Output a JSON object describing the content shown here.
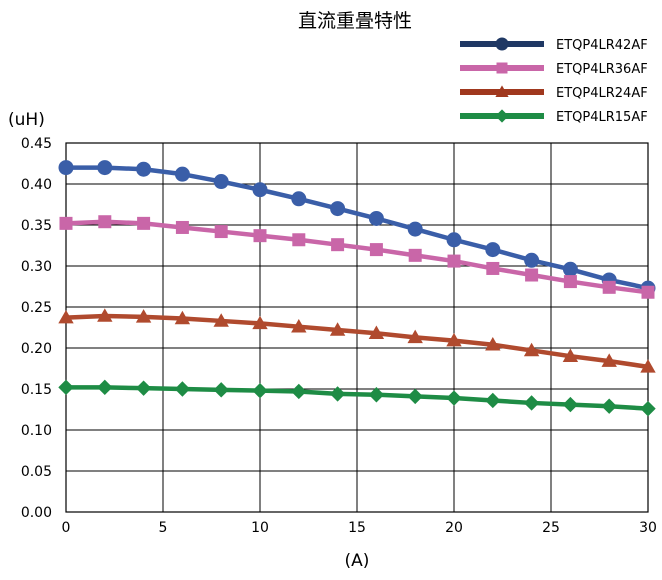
{
  "chart_data": {
    "type": "line",
    "title": "直流重畳特性",
    "ylabel": "(uH)",
    "xlabel": "(A)",
    "xlim": [
      0,
      30
    ],
    "ylim": [
      0,
      0.45
    ],
    "xticks": [
      "0",
      "5",
      "10",
      "15",
      "20",
      "25",
      "30"
    ],
    "xtick_values": [
      0,
      5,
      10,
      15,
      20,
      25,
      30
    ],
    "yticks": [
      "0.00",
      "0.05",
      "0.10",
      "0.15",
      "0.20",
      "0.25",
      "0.30",
      "0.35",
      "0.40",
      "0.45"
    ],
    "ytick_values": [
      0,
      0.05,
      0.1,
      0.15,
      0.2,
      0.25,
      0.3,
      0.35,
      0.4,
      0.45
    ],
    "grid": true,
    "legend_position": "top-right",
    "x": [
      0,
      2,
      4,
      6,
      8,
      10,
      12,
      14,
      16,
      18,
      20,
      22,
      24,
      26,
      28,
      30
    ],
    "series": [
      {
        "name": "ETQP4LR42AF",
        "color": "#3a5ea8",
        "legend_color": "#1f3864",
        "marker": "circle",
        "values": [
          0.42,
          0.42,
          0.418,
          0.412,
          0.403,
          0.393,
          0.382,
          0.37,
          0.358,
          0.345,
          0.332,
          0.32,
          0.307,
          0.296,
          0.283,
          0.273
        ]
      },
      {
        "name": "ETQP4LR36AF",
        "color": "#c966a8",
        "legend_color": "#c966a8",
        "marker": "square",
        "values": [
          0.352,
          0.354,
          0.352,
          0.347,
          0.342,
          0.337,
          0.332,
          0.326,
          0.32,
          0.313,
          0.306,
          0.297,
          0.289,
          0.281,
          0.274,
          0.268
        ]
      },
      {
        "name": "ETQP4LR24AF",
        "color": "#b04a2e",
        "legend_color": "#a0381e",
        "marker": "triangle",
        "values": [
          0.237,
          0.239,
          0.238,
          0.236,
          0.233,
          0.23,
          0.226,
          0.222,
          0.218,
          0.213,
          0.209,
          0.204,
          0.197,
          0.19,
          0.184,
          0.177
        ]
      },
      {
        "name": "ETQP4LR15AF",
        "color": "#1e8c45",
        "legend_color": "#1e8c45",
        "marker": "diamond",
        "values": [
          0.152,
          0.152,
          0.151,
          0.15,
          0.149,
          0.148,
          0.147,
          0.144,
          0.143,
          0.141,
          0.139,
          0.136,
          0.133,
          0.131,
          0.129,
          0.126
        ]
      }
    ]
  }
}
